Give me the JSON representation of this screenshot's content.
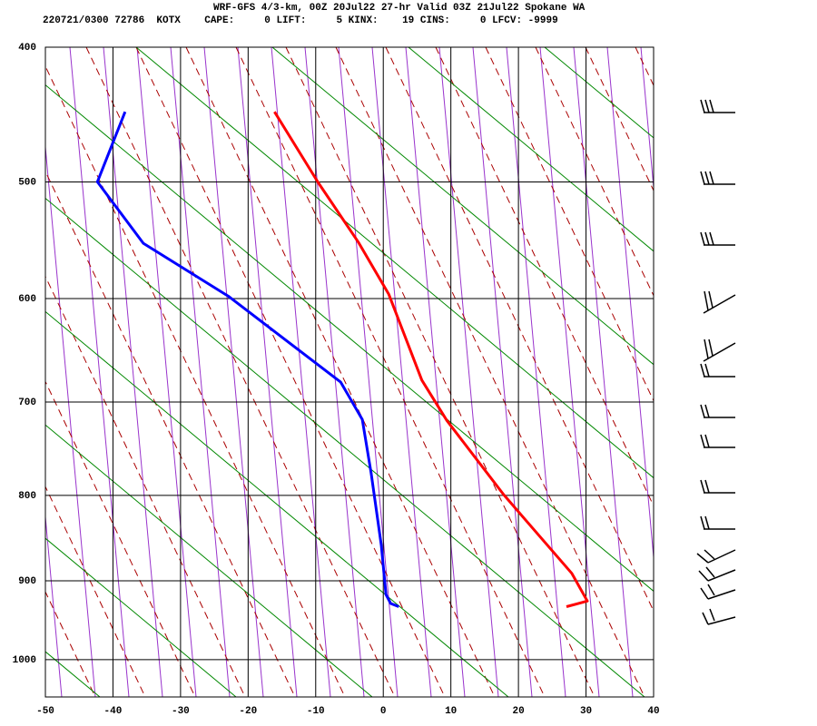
{
  "chart_data": {
    "type": "line",
    "title": "WRF-GFS 4/3-km, 00Z 20Jul22 27-hr Valid 03Z 21Jul22 Spokane WA",
    "subtitle": "220721/0300 72786  KOTX    CAPE:     0 LIFT:     5 KINX:    19 CINS:     0 LFCV: -9999",
    "xlim": [
      -50,
      40
    ],
    "xticks": [
      -50,
      -40,
      -30,
      -20,
      -10,
      0,
      10,
      20,
      30,
      40
    ],
    "ylim": [
      400,
      1050
    ],
    "yticks": [
      400,
      500,
      600,
      700,
      800,
      900,
      1000
    ],
    "grid": true,
    "series": [
      {
        "color": "#ff0000",
        "x": [
          -16.1,
          -9.7,
          -3.7,
          0.8,
          5.7,
          9.4,
          17.8,
          20.5,
          27.9,
          30.2,
          27.1
        ],
        "values": [
          446,
          500,
          550,
          596,
          678,
          719,
          799,
          823,
          891,
          925,
          932
        ]
      },
      {
        "color": "#0000ff",
        "x": [
          -38.2,
          -42.3,
          -35.5,
          -22.9,
          -6.3,
          -3.1,
          -1.8,
          -0.3,
          0.4,
          1.1,
          2.3
        ],
        "values": [
          446,
          500,
          551,
          598,
          680,
          718,
          775,
          857,
          917,
          928,
          932
        ]
      }
    ]
  }
}
